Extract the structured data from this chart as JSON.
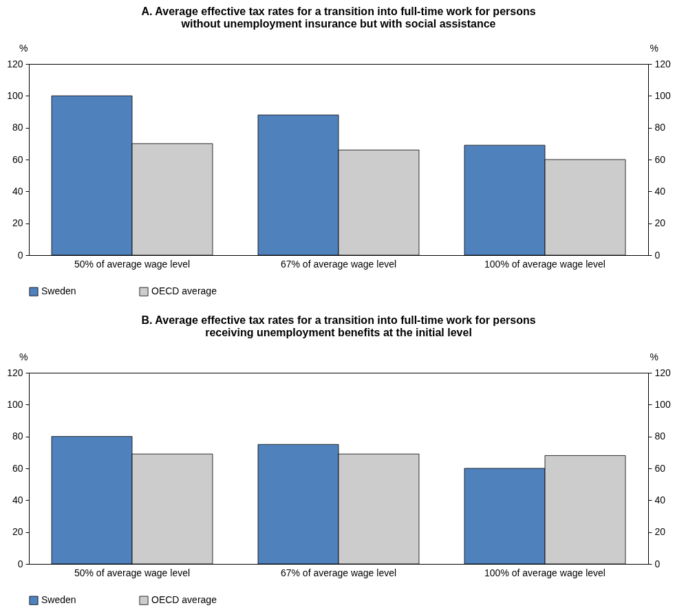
{
  "chart_data": [
    {
      "type": "bar",
      "title": "A. Average effective tax rates for a transition into full-time work for persons without unemployment insurance  but with social assistance",
      "ylabel": "%",
      "y2label": "%",
      "categories": [
        "50% of average wage level",
        "67% of average wage level",
        "100% of average wage level"
      ],
      "series": [
        {
          "name": "Sweden",
          "color": "#4f81bd",
          "values": [
            100,
            88,
            69
          ]
        },
        {
          "name": "OECD average",
          "color": "#cccccc",
          "values": [
            70,
            66,
            60
          ]
        }
      ],
      "ylim": [
        0,
        120
      ],
      "yticks": [
        0,
        20,
        40,
        60,
        80,
        100,
        120
      ],
      "y2lim": [
        0,
        120
      ],
      "y2ticks": [
        0,
        20,
        40,
        60,
        80,
        100,
        120
      ],
      "legend": "bottom",
      "grid": false
    },
    {
      "type": "bar",
      "title": "B. Average effective tax rates for a transition into full-time work for persons receiving unemployment benefits at the initial level",
      "ylabel": "%",
      "y2label": "%",
      "categories": [
        "50% of average wage level",
        "67% of average wage level",
        "100% of average wage level"
      ],
      "series": [
        {
          "name": "Sweden",
          "color": "#4f81bd",
          "values": [
            80,
            75,
            60
          ]
        },
        {
          "name": "OECD average",
          "color": "#cccccc",
          "values": [
            69,
            69,
            68
          ]
        }
      ],
      "ylim": [
        0,
        120
      ],
      "yticks": [
        0,
        20,
        40,
        60,
        80,
        100,
        120
      ],
      "y2lim": [
        0,
        120
      ],
      "y2ticks": [
        0,
        20,
        40,
        60,
        80,
        100,
        120
      ],
      "legend": "bottom",
      "grid": false
    }
  ]
}
